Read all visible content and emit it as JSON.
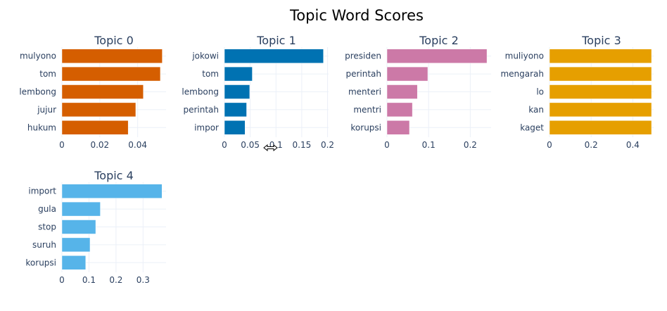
{
  "title": "Topic Word Scores",
  "chart_data": [
    {
      "type": "bar",
      "orientation": "horizontal",
      "title": "Topic 0",
      "color": "#D55E00",
      "categories": [
        "mulyono",
        "tom",
        "lembong",
        "jujur",
        "hukum"
      ],
      "values": [
        0.053,
        0.052,
        0.043,
        0.039,
        0.035
      ],
      "xlim": [
        0,
        0.055
      ],
      "xticks": [
        0,
        0.02,
        0.04
      ],
      "xtick_labels": [
        "0",
        "0.02",
        "0.04"
      ]
    },
    {
      "type": "bar",
      "orientation": "horizontal",
      "title": "Topic 1",
      "color": "#0072B2",
      "categories": [
        "jokowi",
        "tom",
        "lembong",
        "perintah",
        "impor"
      ],
      "values": [
        0.192,
        0.054,
        0.049,
        0.043,
        0.04
      ],
      "xlim": [
        0,
        0.202
      ],
      "xticks": [
        0,
        0.05,
        0.1,
        0.15,
        0.2
      ],
      "xtick_labels": [
        "0",
        "0.05",
        "0.1",
        "0.15",
        "0.2"
      ]
    },
    {
      "type": "bar",
      "orientation": "horizontal",
      "title": "Topic 2",
      "color": "#CC79A7",
      "categories": [
        "presiden",
        "perintah",
        "menteri",
        "mentri",
        "korupsi"
      ],
      "values": [
        0.24,
        0.098,
        0.073,
        0.061,
        0.054
      ],
      "xlim": [
        0,
        0.25
      ],
      "xticks": [
        0,
        0.1,
        0.2
      ],
      "xtick_labels": [
        "0",
        "0.1",
        "0.2"
      ]
    },
    {
      "type": "bar",
      "orientation": "horizontal",
      "title": "Topic 3",
      "color": "#E69F00",
      "categories": [
        "muliyono",
        "mengarah",
        "lo",
        "kan",
        "kaget"
      ],
      "values": [
        0.49,
        0.49,
        0.49,
        0.49,
        0.49
      ],
      "xlim": [
        0,
        0.5
      ],
      "xticks": [
        0,
        0.2,
        0.4
      ],
      "xtick_labels": [
        "0",
        "0.2",
        "0.4"
      ]
    },
    {
      "type": "bar",
      "orientation": "horizontal",
      "title": "Topic 4",
      "color": "#56B4E9",
      "categories": [
        "import",
        "gula",
        "stop",
        "suruh",
        "korupsi"
      ],
      "values": [
        0.37,
        0.142,
        0.125,
        0.104,
        0.088
      ],
      "xlim": [
        0,
        0.385
      ],
      "xticks": [
        0,
        0.1,
        0.2,
        0.3
      ],
      "xtick_labels": [
        "0",
        "0.1",
        "0.2",
        "0.3"
      ]
    }
  ]
}
